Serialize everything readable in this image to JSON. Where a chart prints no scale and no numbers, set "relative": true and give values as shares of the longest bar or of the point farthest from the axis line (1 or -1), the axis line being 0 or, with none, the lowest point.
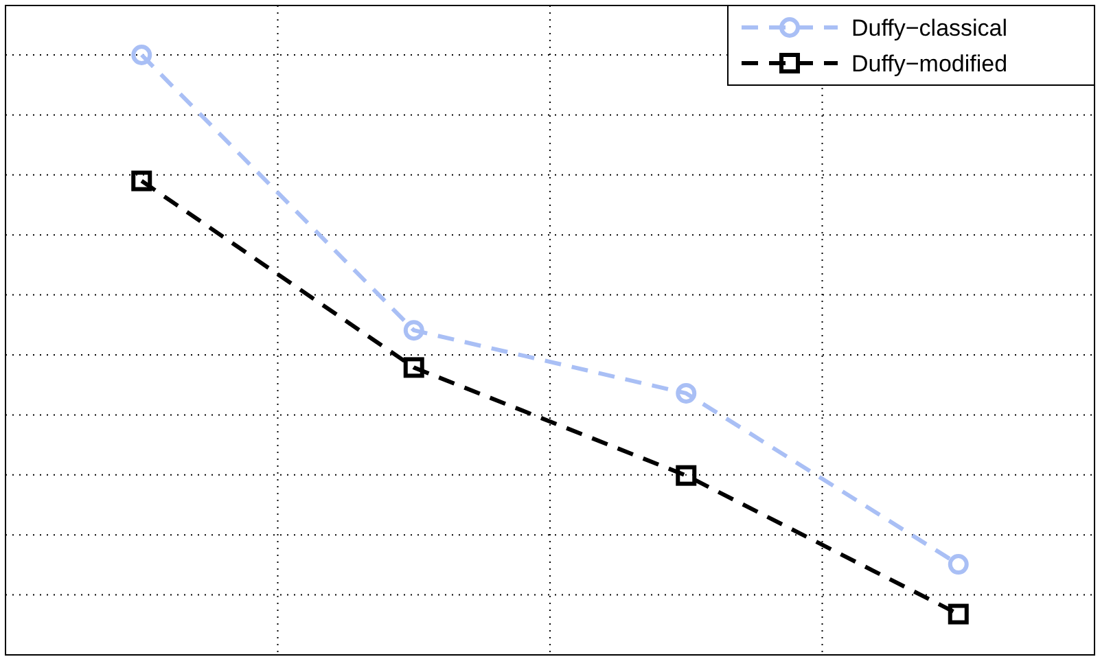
{
  "chart_data": {
    "type": "line",
    "relative": true,
    "categories": [
      null,
      null,
      null,
      null
    ],
    "grid": true,
    "legend": "top right",
    "series": [
      {
        "name": "Duffy−classical",
        "color": "#a9bff5",
        "values": [
          1,
          0.541,
          0.436,
          0.151
        ],
        "marker": "circle",
        "line_style": "dashed"
      },
      {
        "name": "Duffy−modified",
        "color": "#000000",
        "values": [
          0.79,
          0.479,
          0.299,
          0.068
        ],
        "marker": "square",
        "line_style": "dashed"
      }
    ]
  }
}
